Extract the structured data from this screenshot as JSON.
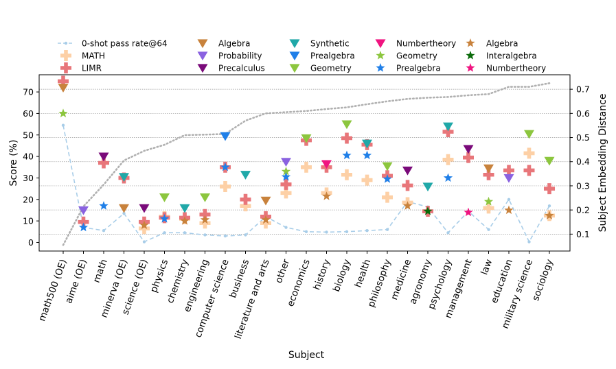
{
  "chart_data": {
    "type": "scatter",
    "xlabel": "Subject",
    "ylabel": "Score (%)",
    "y2label": "Subject Embedding Distance",
    "ylim": [
      -4,
      78
    ],
    "y2lim": [
      0.03,
      0.76
    ],
    "yticks": [
      0,
      10,
      20,
      30,
      40,
      50,
      60,
      70
    ],
    "y2ticks": [
      0.1,
      0.2,
      0.3,
      0.4,
      0.5,
      0.6,
      0.7
    ],
    "y2ticklabels": [
      "0.1",
      "0.2",
      "0.3",
      "0.4",
      "0.5",
      "0.6",
      "0.7"
    ],
    "grid": "horizontal dotted",
    "legend_position": "top",
    "categories": [
      "math500 (OE)",
      "aime (OE)",
      "math",
      "minerva (OE)",
      "science (OE)",
      "physics",
      "chemistry",
      "engineering",
      "computer science",
      "business",
      "literature and arts",
      "other",
      "economics",
      "history",
      "biology",
      "health",
      "philosophy",
      "medicine",
      "agronomy",
      "psychology",
      "management",
      "law",
      "education",
      "military science",
      "sociology"
    ],
    "colors": {
      "pass_rate": "#a8cde8",
      "math": "#fdd0a6",
      "limr": "#e8767a",
      "distance": "#b0b0b0",
      "tri_algebra": "#c8823c",
      "tri_probability": "#8a62e0",
      "tri_precalculus": "#7a0a7a",
      "tri_synthetic": "#20a8a8",
      "tri_prealgebra": "#1f7fe8",
      "tri_geometry": "#8cc63e",
      "tri_numbertheory": "#f01480",
      "star_geometry": "#8cc63e",
      "star_prealgebra": "#1f7fe8",
      "star_algebra": "#c8823c",
      "star_interalgebra": "#0a6a0a",
      "star_numbertheory": "#f01480"
    },
    "legend": [
      {
        "label": "0-shot pass rate@64",
        "kind": "dashline",
        "color": "#a8cde8"
      },
      {
        "label": "MATH",
        "kind": "plus",
        "color": "#fdd0a6"
      },
      {
        "label": "LIMR",
        "kind": "plus",
        "color": "#e8767a"
      },
      {
        "label": "Algebra",
        "kind": "tri",
        "color": "#c8823c"
      },
      {
        "label": "Probability",
        "kind": "tri",
        "color": "#8a62e0"
      },
      {
        "label": "Precalculus",
        "kind": "tri",
        "color": "#7a0a7a"
      },
      {
        "label": "Synthetic",
        "kind": "tri",
        "color": "#20a8a8"
      },
      {
        "label": "Prealgebra",
        "kind": "tri",
        "color": "#1f7fe8"
      },
      {
        "label": "Geometry",
        "kind": "tri",
        "color": "#8cc63e"
      },
      {
        "label": "Numbertheory",
        "kind": "tri",
        "color": "#f01480"
      },
      {
        "label": "Geometry",
        "kind": "star",
        "color": "#8cc63e"
      },
      {
        "label": "Prealgebra",
        "kind": "star",
        "color": "#1f7fe8"
      },
      {
        "label": "Algebra",
        "kind": "star",
        "color": "#c8823c"
      },
      {
        "label": "Interalgebra",
        "kind": "star",
        "color": "#0a6a0a"
      },
      {
        "label": "Numbertheory",
        "kind": "star",
        "color": "#f01480"
      }
    ],
    "series": [
      {
        "name": "0-shot pass rate@64",
        "kind": "dashline",
        "color": "#a8cde8",
        "values": [
          54.5,
          7,
          5.5,
          13.5,
          0.3,
          4.5,
          4.5,
          3.5,
          3,
          3.5,
          12,
          7,
          5,
          4.8,
          5,
          5.5,
          6,
          19,
          16.5,
          4.5,
          14.5,
          6,
          20,
          0.3,
          17
        ]
      },
      {
        "name": "MATH",
        "kind": "plus",
        "color": "#fdd0a6",
        "values": [
          null,
          null,
          null,
          null,
          6.5,
          12,
          11,
          9,
          26,
          17,
          9,
          23,
          35,
          23,
          31.5,
          29,
          21,
          18.5,
          null,
          38.5,
          null,
          16,
          null,
          41.5,
          12.5
        ]
      },
      {
        "name": "LIMR",
        "kind": "plus",
        "color": "#e8767a",
        "values": [
          75,
          9.5,
          37,
          30,
          9.5,
          11.5,
          11.5,
          13,
          35,
          20,
          12,
          27,
          47.5,
          35,
          48.5,
          45.5,
          31,
          26.5,
          14.5,
          51.5,
          39.5,
          31.5,
          33.5,
          33.5,
          25
        ]
      },
      {
        "name": "Algebra",
        "kind": "tri",
        "color": "#c8823c",
        "values": [
          72,
          null,
          null,
          16,
          null,
          null,
          null,
          null,
          null,
          null,
          19.5,
          null,
          null,
          null,
          null,
          null,
          null,
          null,
          null,
          null,
          null,
          34.5,
          null,
          null,
          null
        ]
      },
      {
        "name": "Probability",
        "kind": "tri",
        "color": "#8a62e0",
        "values": [
          null,
          15,
          null,
          null,
          null,
          null,
          null,
          null,
          null,
          null,
          null,
          37.5,
          null,
          null,
          null,
          null,
          null,
          null,
          null,
          null,
          null,
          null,
          30,
          null,
          null
        ]
      },
      {
        "name": "Precalculus",
        "kind": "tri",
        "color": "#7a0a7a",
        "values": [
          null,
          null,
          40,
          null,
          16,
          null,
          null,
          null,
          null,
          null,
          null,
          null,
          null,
          null,
          null,
          null,
          null,
          33.5,
          null,
          null,
          43.5,
          null,
          null,
          null,
          null
        ]
      },
      {
        "name": "Synthetic",
        "kind": "tri",
        "color": "#20a8a8",
        "values": [
          null,
          null,
          null,
          30.5,
          null,
          null,
          16,
          null,
          null,
          31.5,
          null,
          null,
          null,
          null,
          null,
          46,
          null,
          null,
          26,
          54,
          null,
          null,
          null,
          null,
          null
        ]
      },
      {
        "name": "Prealgebra",
        "kind": "tri",
        "color": "#1f7fe8",
        "values": [
          null,
          null,
          null,
          null,
          null,
          null,
          null,
          null,
          49.5,
          null,
          null,
          null,
          null,
          null,
          null,
          null,
          null,
          null,
          null,
          null,
          null,
          null,
          null,
          null,
          null
        ]
      },
      {
        "name": "Geometry",
        "kind": "tri",
        "color": "#8cc63e",
        "values": [
          null,
          null,
          null,
          null,
          null,
          21,
          null,
          21,
          null,
          null,
          null,
          null,
          48.5,
          null,
          55,
          null,
          35.5,
          null,
          null,
          null,
          null,
          null,
          null,
          50.5,
          38
        ]
      },
      {
        "name": "Numbertheory",
        "kind": "tri",
        "color": "#f01480",
        "values": [
          null,
          null,
          null,
          null,
          null,
          null,
          null,
          null,
          null,
          null,
          null,
          null,
          null,
          36.5,
          null,
          null,
          null,
          null,
          null,
          null,
          null,
          null,
          null,
          null,
          null
        ]
      },
      {
        "name": "Geometry",
        "kind": "star",
        "color": "#8cc63e",
        "values": [
          60,
          null,
          null,
          null,
          null,
          null,
          null,
          null,
          null,
          null,
          null,
          33,
          null,
          null,
          null,
          null,
          null,
          null,
          null,
          null,
          null,
          19,
          null,
          null,
          null
        ]
      },
      {
        "name": "Prealgebra",
        "kind": "star",
        "color": "#1f7fe8",
        "values": [
          null,
          7,
          17,
          null,
          null,
          11,
          null,
          null,
          35,
          null,
          null,
          30.5,
          null,
          null,
          40.5,
          40.5,
          29.5,
          null,
          null,
          30,
          null,
          null,
          null,
          null,
          null
        ]
      },
      {
        "name": "Algebra",
        "kind": "star",
        "color": "#c8823c",
        "values": [
          null,
          null,
          null,
          null,
          8,
          null,
          10,
          10.5,
          null,
          null,
          10.5,
          null,
          null,
          21.5,
          null,
          null,
          null,
          17,
          null,
          null,
          null,
          null,
          15,
          null,
          12.5
        ]
      },
      {
        "name": "Interalgebra",
        "kind": "star",
        "color": "#0a6a0a",
        "values": [
          null,
          null,
          null,
          null,
          null,
          null,
          null,
          null,
          null,
          null,
          null,
          null,
          null,
          null,
          null,
          null,
          null,
          null,
          14.5,
          null,
          null,
          null,
          null,
          null,
          null
        ]
      },
      {
        "name": "Numbertheory",
        "kind": "star",
        "color": "#f01480",
        "values": [
          null,
          null,
          null,
          null,
          null,
          null,
          null,
          null,
          null,
          null,
          null,
          null,
          null,
          null,
          null,
          null,
          null,
          null,
          null,
          null,
          14,
          null,
          null,
          null,
          null
        ]
      },
      {
        "name": "Subject Embedding Distance",
        "kind": "dotline",
        "color": "#b0b0b0",
        "axis": "right",
        "values": [
          0.055,
          0.215,
          0.305,
          0.405,
          0.445,
          0.47,
          0.51,
          0.512,
          0.515,
          0.57,
          0.6,
          0.605,
          0.61,
          0.618,
          0.625,
          0.638,
          0.65,
          0.66,
          0.665,
          0.668,
          0.675,
          0.68,
          0.71,
          0.71,
          0.725
        ]
      }
    ]
  }
}
